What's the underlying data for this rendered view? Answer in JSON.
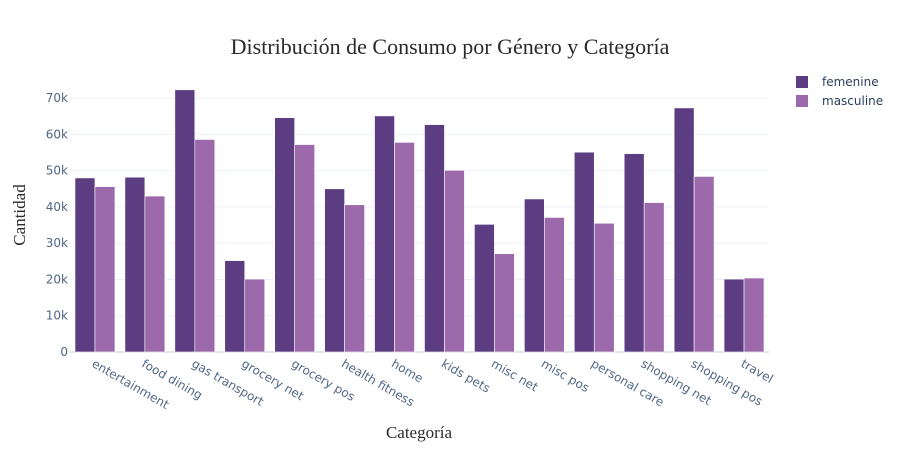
{
  "chart_data": {
    "type": "bar",
    "title": "Distribución de Consumo por Género y Categoría",
    "xlabel": "Categoría",
    "ylabel": "Cantidad",
    "categories": [
      "entertainment",
      "food dining",
      "gas transport",
      "grocery net",
      "grocery pos",
      "health fitness",
      "home",
      "kids pets",
      "misc net",
      "misc pos",
      "personal care",
      "shopping net",
      "shopping pos",
      "travel"
    ],
    "series": [
      {
        "name": "femenine",
        "color": "#5c3d82",
        "values": [
          48000,
          48200,
          72300,
          25200,
          64600,
          45000,
          65100,
          62700,
          35200,
          42200,
          55100,
          54700,
          67300,
          20100
        ]
      },
      {
        "name": "masculine",
        "color": "#9c6aab",
        "values": [
          45600,
          43000,
          58600,
          20100,
          57200,
          40600,
          57800,
          50100,
          27100,
          37100,
          35500,
          41200,
          48400,
          20400
        ]
      }
    ],
    "ylim": [
      0,
      75000
    ],
    "yticks": [
      0,
      10000,
      20000,
      30000,
      40000,
      50000,
      60000,
      70000
    ],
    "ytick_labels": [
      "0",
      "10k",
      "20k",
      "30k",
      "40k",
      "50k",
      "60k",
      "70k"
    ],
    "grid": true,
    "legend_position": "top-right"
  }
}
